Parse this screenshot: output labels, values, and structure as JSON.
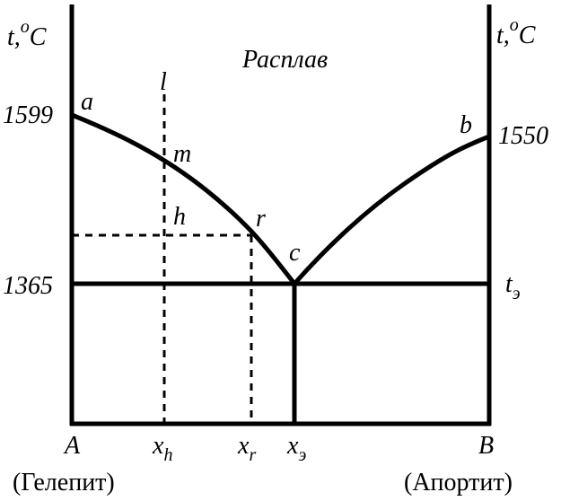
{
  "axis_labels": {
    "left": {
      "symbol": "t,",
      "sup": "o",
      "unit": "C"
    },
    "right": {
      "symbol": "t,",
      "sup": "o",
      "unit": "C"
    }
  },
  "temperatures": {
    "left_top": "1599",
    "left_bottom": "1365",
    "right_top": "1550",
    "eutectic": {
      "base": "t",
      "sub": "э"
    }
  },
  "region": "Расплав",
  "points": {
    "a": "a",
    "b": "b",
    "c": "c",
    "m": "m",
    "h": "h",
    "r": "r",
    "l": "l"
  },
  "x_axis": {
    "A": "A",
    "xh": {
      "base": "x",
      "sub": "h"
    },
    "xr": {
      "base": "x",
      "sub": "r"
    },
    "xe": {
      "base": "x",
      "sub": "э"
    },
    "B": "B"
  },
  "compositions": {
    "left": "(Гелепит)",
    "right": "(Апортит)"
  }
}
